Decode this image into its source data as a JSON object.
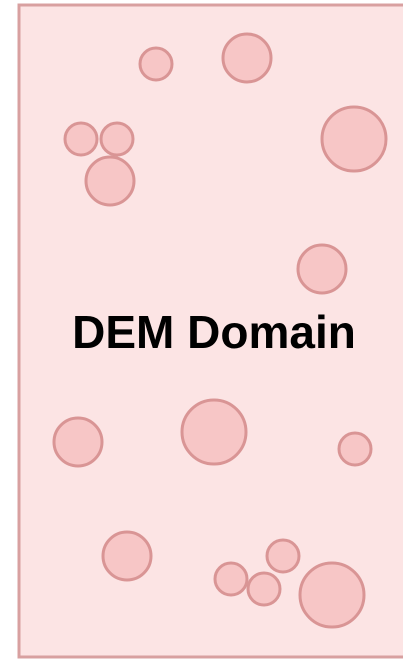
{
  "title": "DEM Domain"
}
